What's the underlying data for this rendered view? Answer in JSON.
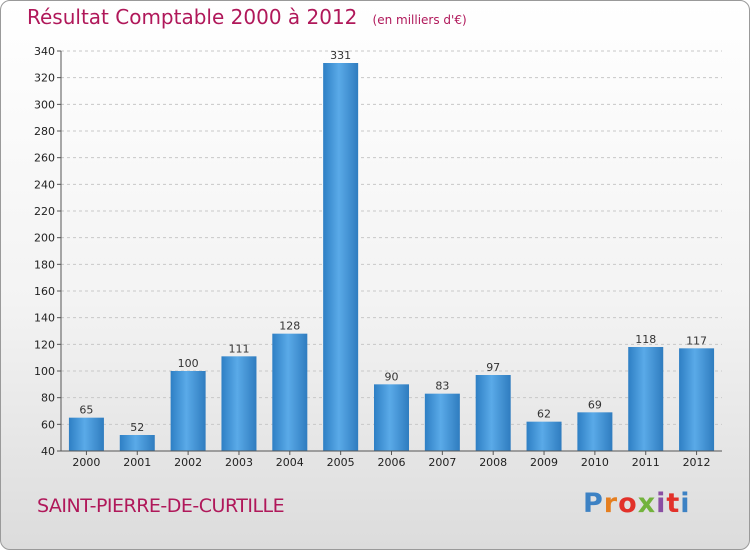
{
  "header": {
    "title": "Résultat Comptable 2000 à 2012",
    "unit": "(en milliers d'€)"
  },
  "footer": {
    "commune": "SAINT-PIERRE-DE-CURTILLE",
    "logo_text": "Proxiti",
    "logo_colors": [
      "#3d82c4",
      "#e57e1f",
      "#e2312a",
      "#73b33d",
      "#8a4fa3",
      "#e2312a",
      "#3d82c4"
    ]
  },
  "chart_data": {
    "type": "bar",
    "title": "Résultat Comptable 2000 à 2012",
    "xlabel": "",
    "ylabel": "",
    "categories": [
      "2000",
      "2001",
      "2002",
      "2003",
      "2004",
      "2005",
      "2006",
      "2007",
      "2008",
      "2009",
      "2010",
      "2011",
      "2012"
    ],
    "values": [
      65,
      52,
      100,
      111,
      128,
      331,
      90,
      83,
      97,
      62,
      69,
      118,
      117
    ],
    "ylim": [
      40,
      340
    ],
    "yticks": [
      40,
      60,
      80,
      100,
      120,
      140,
      160,
      180,
      200,
      220,
      240,
      260,
      280,
      300,
      320,
      340
    ],
    "grid": true,
    "bar_color": "#4a9ee0"
  }
}
